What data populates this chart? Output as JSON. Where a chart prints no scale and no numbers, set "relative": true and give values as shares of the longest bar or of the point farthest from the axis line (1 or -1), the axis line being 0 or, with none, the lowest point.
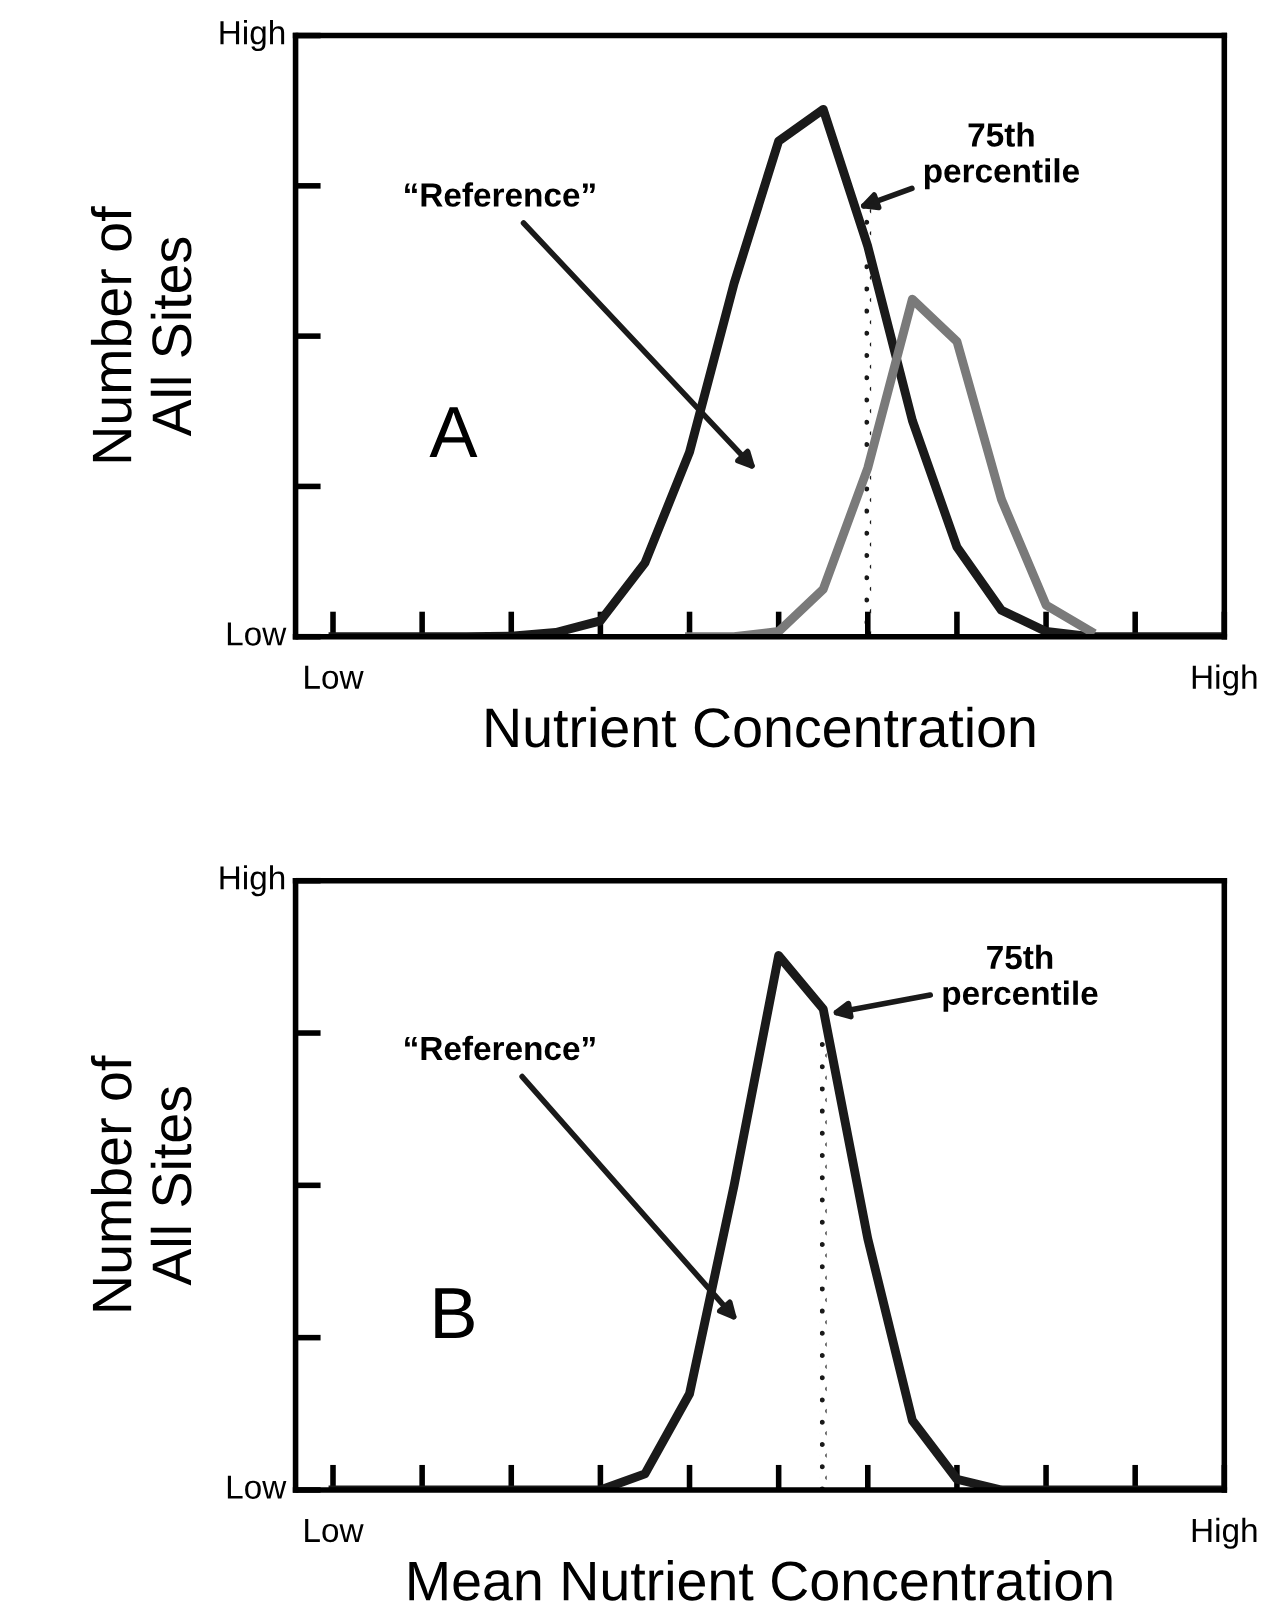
{
  "chart_data": [
    {
      "type": "line",
      "relative": true,
      "xlabel": "Nutrient Concentration",
      "ylabel": "Number of\nAll Sites",
      "grid": false,
      "legend": false,
      "categories": [
        "Low",
        null,
        null,
        null,
        null,
        null,
        null,
        null,
        null,
        null,
        null,
        null,
        null,
        null,
        null,
        null,
        null,
        null,
        null,
        null,
        "High"
      ],
      "series": [
        {
          "color": "#1a1a1a",
          "values": [
            0,
            0,
            0,
            0,
            0.001,
            0.008,
            0.03,
            0.14,
            0.35,
            0.67,
            0.94,
            1,
            0.74,
            0.41,
            0.17,
            0.05,
            0.01,
            0,
            0,
            0,
            0
          ]
        },
        {
          "color": "#7a7a7a",
          "values": [
            null,
            null,
            null,
            null,
            null,
            null,
            null,
            null,
            0,
            0,
            0.01,
            0.09,
            0.32,
            0.64,
            0.56,
            0.26,
            0.06,
            0.01,
            null,
            null,
            null
          ]
        },
        {
          "type": "bar",
          "color": "#1a1a1a",
          "line_style": "dotted",
          "values": [
            null,
            null,
            null,
            null,
            null,
            null,
            null,
            null,
            null,
            null,
            null,
            null,
            0.82,
            null,
            null,
            null,
            null,
            null,
            null,
            null,
            null
          ]
        }
      ],
      "annotations": [
        "“Reference”",
        "75th\npercentile",
        "A",
        "Low",
        "High"
      ]
    },
    {
      "type": "line",
      "relative": true,
      "xlabel": "Mean Nutrient Concentration",
      "ylabel": "Number of\nAll Sites",
      "grid": false,
      "legend": false,
      "categories": [
        "Low",
        null,
        null,
        null,
        null,
        null,
        null,
        null,
        null,
        null,
        null,
        null,
        null,
        null,
        null,
        null,
        null,
        null,
        null,
        null,
        "High"
      ],
      "series": [
        {
          "color": "#1a1a1a",
          "values": [
            0,
            0,
            0,
            0,
            0,
            0,
            0,
            0.03,
            0.18,
            0.57,
            1,
            0.9,
            0.47,
            0.13,
            0.02,
            0,
            0,
            0,
            0,
            0,
            0
          ]
        },
        {
          "type": "bar",
          "color": "#1a1a1a",
          "line_style": "dotted",
          "values": [
            null,
            null,
            null,
            null,
            null,
            null,
            null,
            null,
            null,
            null,
            null,
            0.85,
            null,
            null,
            null,
            null,
            null,
            null,
            null,
            null,
            null
          ]
        }
      ],
      "annotations": [
        "“Reference”",
        "75th\npercentile",
        "B",
        "Low",
        "High"
      ]
    }
  ]
}
